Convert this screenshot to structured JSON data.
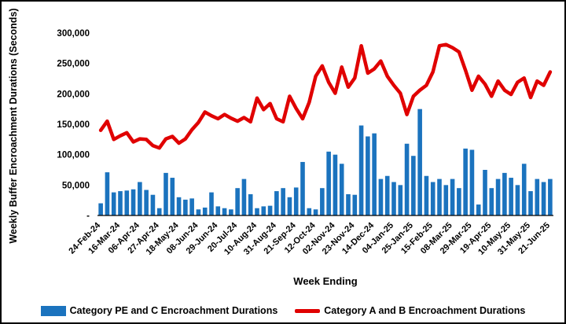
{
  "frame": {
    "border_color": "#000000",
    "background": "#ffffff"
  },
  "chart_data": {
    "type": "combo",
    "title": "",
    "xlabel": "Week Ending",
    "ylabel": "Weekly Buffer Encroachment Durations (Seconds)",
    "ylim": [
      0,
      300000
    ],
    "ytick_step": 50000,
    "ytick_labels": [
      "-",
      "50,000",
      "100,000",
      "150,000",
      "200,000",
      "250,000",
      "300,000"
    ],
    "gridlines": false,
    "legend_position": "bottom",
    "xtick_every": 3,
    "xtick_labels": [
      "24-Feb-24",
      "16-Mar-24",
      "06-Apr-24",
      "27-Apr-24",
      "18-May-24",
      "08-Jun-24",
      "29-Jun-24",
      "20-Jul-24",
      "10-Aug-24",
      "31-Aug-24",
      "21-Sep-24",
      "12-Oct-24",
      "02-Nov-24",
      "23-Nov-24",
      "14-Dec-24",
      "04-Jan-25",
      "25-Jan-25",
      "15-Feb-25",
      "08-Mar-25",
      "29-Mar-25",
      "19-Apr-25",
      "10-May-25",
      "31-May-25",
      "21-Jun-25"
    ],
    "series": [
      {
        "name": "Category PE and C Encroachment Durations",
        "type": "bar",
        "color": "#1B73BE",
        "values": [
          20000,
          71000,
          38000,
          40000,
          41000,
          43000,
          55000,
          42000,
          34000,
          12000,
          70000,
          62000,
          30000,
          26000,
          28000,
          10000,
          13000,
          38000,
          15000,
          12000,
          10000,
          45000,
          60000,
          35000,
          12000,
          15000,
          16000,
          40000,
          45000,
          30000,
          46000,
          88000,
          12000,
          10000,
          45000,
          105000,
          100000,
          85000,
          35000,
          34000,
          148000,
          130000,
          135000,
          60000,
          65000,
          55000,
          50000,
          118000,
          98000,
          175000,
          65000,
          55000,
          60000,
          50000,
          60000,
          45000,
          110000,
          108000,
          18000,
          75000,
          45000,
          60000,
          70000,
          62000,
          50000,
          85000,
          40000,
          60000,
          55000,
          60000
        ]
      },
      {
        "name": "Category A and B Encroachment Durations",
        "type": "line",
        "color": "#E00000",
        "values": [
          140000,
          155000,
          125000,
          131000,
          136000,
          121000,
          126000,
          125000,
          115000,
          111000,
          126000,
          130000,
          119000,
          126000,
          141000,
          153000,
          170000,
          164000,
          159000,
          166000,
          160000,
          155000,
          161000,
          154000,
          193000,
          174000,
          184000,
          159000,
          154000,
          196000,
          176000,
          159000,
          186000,
          229000,
          246000,
          219000,
          201000,
          244000,
          211000,
          226000,
          279000,
          234000,
          241000,
          254000,
          229000,
          214000,
          201000,
          166000,
          196000,
          206000,
          214000,
          236000,
          279000,
          281000,
          276000,
          269000,
          239000,
          206000,
          229000,
          216000,
          196000,
          221000,
          206000,
          199000,
          219000,
          226000,
          194000,
          221000,
          214000,
          236000
        ]
      }
    ]
  }
}
